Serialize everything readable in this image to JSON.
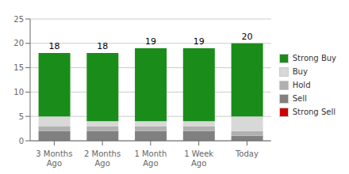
{
  "chart_data": {
    "type": "bar",
    "stacked": true,
    "categories": [
      "3 Months\nAgo",
      "2 Months\nAgo",
      "1 Month\nAgo",
      "1 Week\nAgo",
      "Today"
    ],
    "series": [
      {
        "name": "Strong Sell",
        "color": "#cc0000",
        "values": [
          0,
          0,
          0,
          0,
          0
        ]
      },
      {
        "name": "Sell",
        "color": "#808080",
        "values": [
          2,
          2,
          2,
          2,
          1
        ]
      },
      {
        "name": "Hold",
        "color": "#b0b0b0",
        "values": [
          1,
          1,
          1,
          1,
          1
        ]
      },
      {
        "name": "Buy",
        "color": "#d8d8d8",
        "values": [
          2,
          1,
          1,
          1,
          3
        ]
      },
      {
        "name": "Strong Buy",
        "color": "#1a8c1a",
        "values": [
          13,
          14,
          15,
          15,
          15
        ]
      }
    ],
    "totals": [
      18,
      18,
      19,
      19,
      20
    ],
    "ylim": [
      0,
      25
    ],
    "yticks": [
      0,
      5,
      10,
      15,
      20,
      25
    ],
    "grid": true,
    "legend": "right"
  }
}
